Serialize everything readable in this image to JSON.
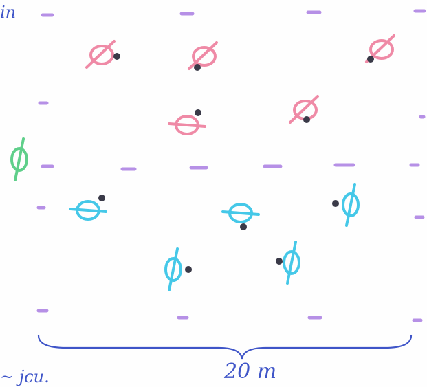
{
  "labels": {
    "corner_top": "in",
    "corner_bottom": "~ jcu.",
    "width_label": "20 m"
  },
  "colors": {
    "ink_blue": "#3f55c8",
    "dash_purple": "#b690e6",
    "marker_red": "#ef8aa6",
    "marker_cyan": "#45c8e8",
    "marker_green": "#5fcf8a",
    "dot_dark": "#3a3a48"
  },
  "icon_names": [
    "circled-cross-marker",
    "dash-mark",
    "brace-icon",
    "dot"
  ]
}
